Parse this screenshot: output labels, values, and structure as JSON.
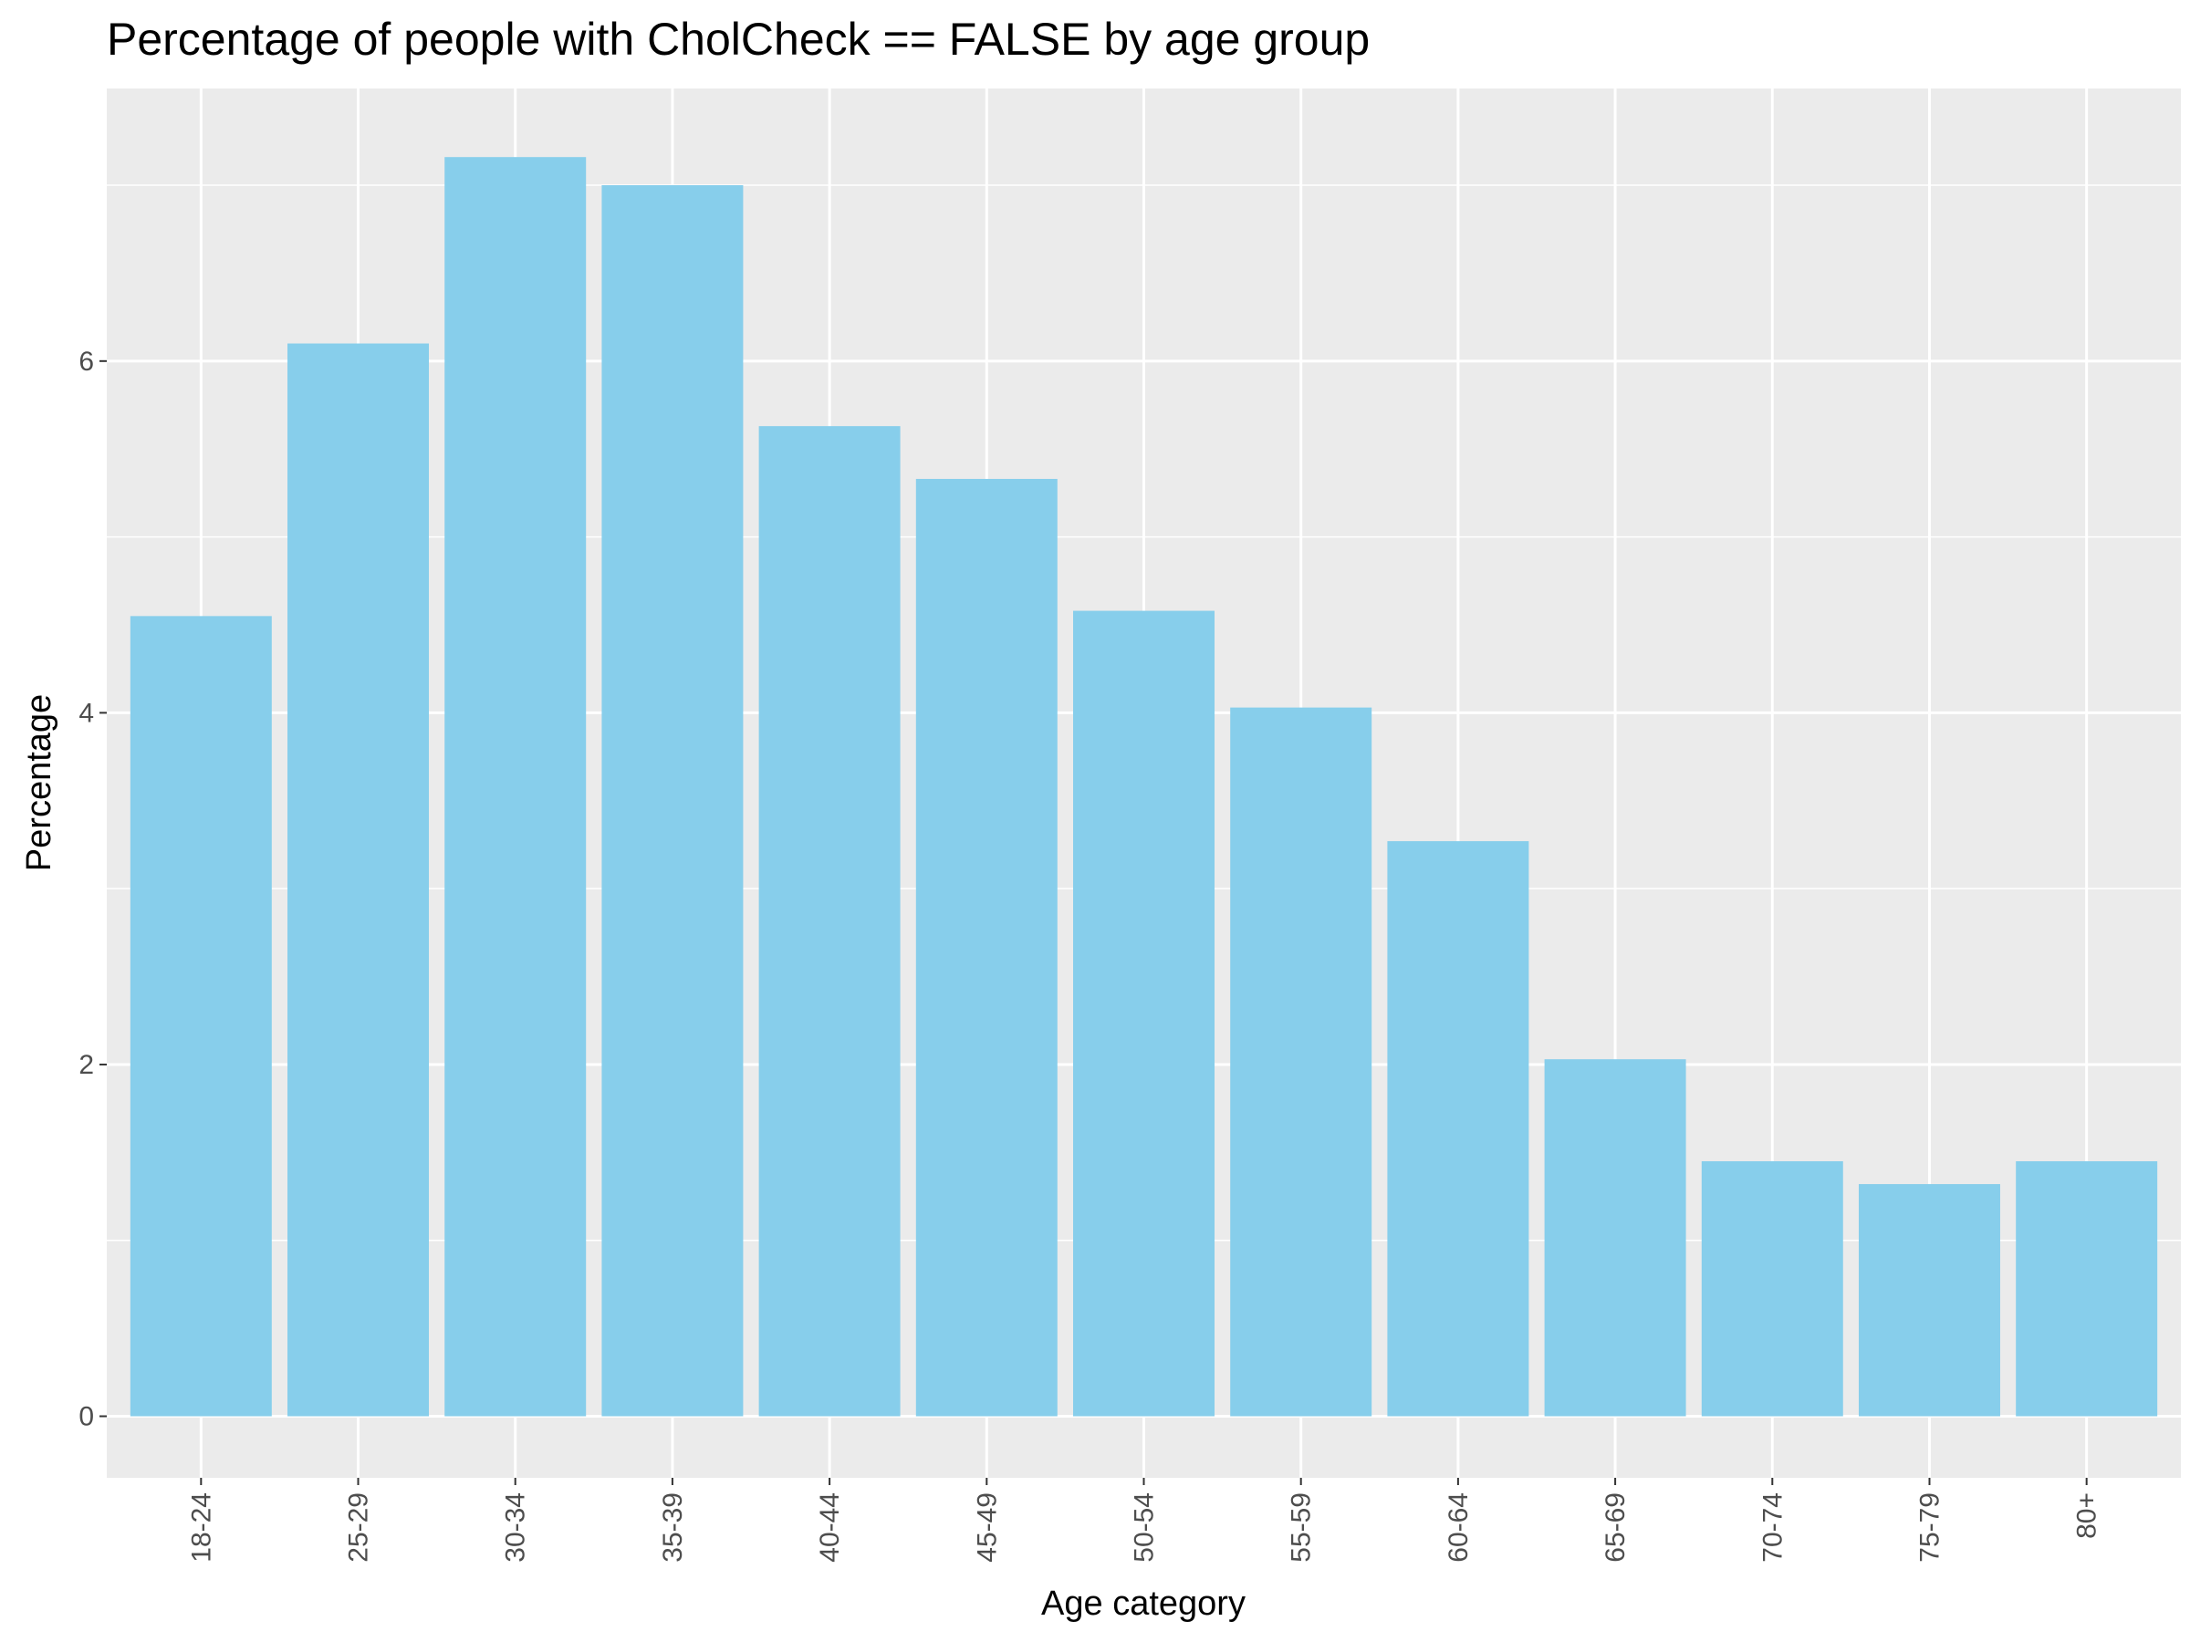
{
  "chart_data": {
    "type": "bar",
    "title": "Percentage of people with CholCheck == FALSE by age group",
    "xlabel": "Age category",
    "ylabel": "Percentage",
    "categories": [
      "18-24",
      "25-29",
      "30-34",
      "35-39",
      "40-44",
      "45-49",
      "50-54",
      "55-59",
      "60-64",
      "65-69",
      "70-74",
      "75-79",
      "80+"
    ],
    "values": [
      4.55,
      6.1,
      7.16,
      7.0,
      5.63,
      5.33,
      4.58,
      4.03,
      3.27,
      2.03,
      1.45,
      1.32,
      1.45
    ],
    "ylim": [
      -0.35,
      7.55
    ],
    "yticks": [
      0,
      2,
      4,
      6
    ],
    "grid": true,
    "legend": "none",
    "colors": {
      "bar": "#87CEEB",
      "panel": "#EBEBEB",
      "grid": "#FFFFFF",
      "tick_text": "#4D4D4D"
    }
  }
}
